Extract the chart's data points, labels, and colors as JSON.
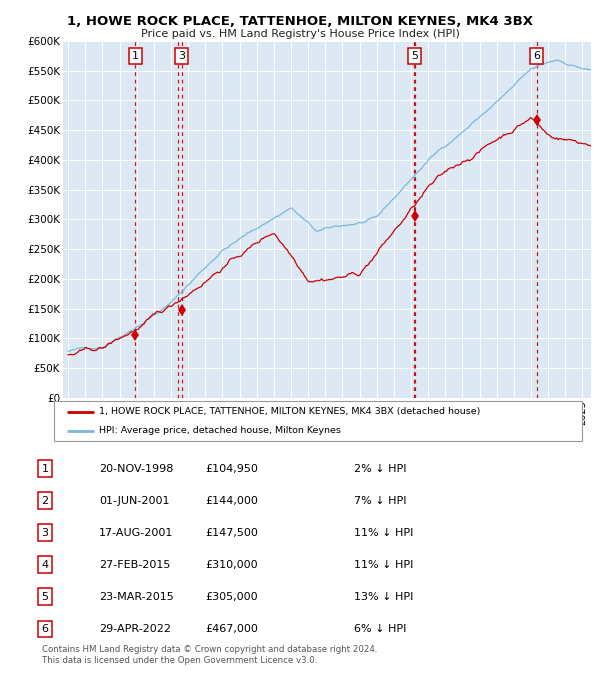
{
  "title1": "1, HOWE ROCK PLACE, TATTENHOE, MILTON KEYNES, MK4 3BX",
  "title2": "Price paid vs. HM Land Registry's House Price Index (HPI)",
  "bg_color": "#dce9f5",
  "grid_color": "#ffffff",
  "hpi_color": "#7ab8d9",
  "price_color": "#cc0000",
  "marker_color": "#cc0000",
  "vline_color": "#cc0000",
  "ylim": [
    0,
    600000
  ],
  "yticks": [
    0,
    50000,
    100000,
    150000,
    200000,
    250000,
    300000,
    350000,
    400000,
    450000,
    500000,
    550000,
    600000
  ],
  "ytick_labels": [
    "£0",
    "£50K",
    "£100K",
    "£150K",
    "£200K",
    "£250K",
    "£300K",
    "£350K",
    "£400K",
    "£450K",
    "£500K",
    "£550K",
    "£600K"
  ],
  "sale_events": [
    {
      "label": "1",
      "date_x": 1998.92,
      "price": 104950,
      "show_marker": true,
      "show_box": true
    },
    {
      "label": "2",
      "date_x": 2001.42,
      "price": 144000,
      "show_marker": false,
      "show_box": false
    },
    {
      "label": "3",
      "date_x": 2001.63,
      "price": 147500,
      "show_marker": true,
      "show_box": true
    },
    {
      "label": "4",
      "date_x": 2015.15,
      "price": 310000,
      "show_marker": false,
      "show_box": false
    },
    {
      "label": "5",
      "date_x": 2015.22,
      "price": 305000,
      "show_marker": true,
      "show_box": true
    },
    {
      "label": "6",
      "date_x": 2022.33,
      "price": 467000,
      "show_marker": true,
      "show_box": true
    }
  ],
  "legend_line1": "1, HOWE ROCK PLACE, TATTENHOE, MILTON KEYNES, MK4 3BX (detached house)",
  "legend_line2": "HPI: Average price, detached house, Milton Keynes",
  "table_rows": [
    {
      "num": "1",
      "date": "20-NOV-1998",
      "price": "£104,950",
      "hpi": "2% ↓ HPI"
    },
    {
      "num": "2",
      "date": "01-JUN-2001",
      "price": "£144,000",
      "hpi": "7% ↓ HPI"
    },
    {
      "num": "3",
      "date": "17-AUG-2001",
      "price": "£147,500",
      "hpi": "11% ↓ HPI"
    },
    {
      "num": "4",
      "date": "27-FEB-2015",
      "price": "£310,000",
      "hpi": "11% ↓ HPI"
    },
    {
      "num": "5",
      "date": "23-MAR-2015",
      "price": "£305,000",
      "hpi": "13% ↓ HPI"
    },
    {
      "num": "6",
      "date": "29-APR-2022",
      "price": "£467,000",
      "hpi": "6% ↓ HPI"
    }
  ],
  "footnote1": "Contains HM Land Registry data © Crown copyright and database right 2024.",
  "footnote2": "This data is licensed under the Open Government Licence v3.0.",
  "xlim_start": 1994.7,
  "xlim_end": 2025.5
}
